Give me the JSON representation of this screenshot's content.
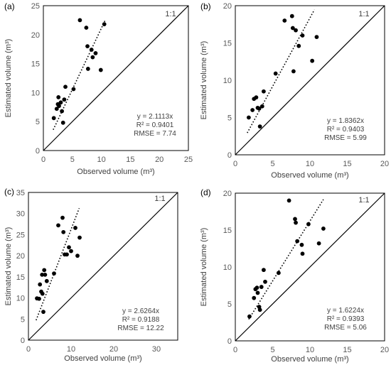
{
  "chart_data": [
    {
      "type": "scatter",
      "panel_label": "(a)",
      "xlabel": "Observed volume (m³)",
      "ylabel": "Estimated volume (m³)",
      "xlim": [
        0,
        25
      ],
      "ylim": [
        0,
        25
      ],
      "xticks": [
        "0",
        "5",
        "10",
        "15",
        "20",
        "25"
      ],
      "yticks": [
        "0",
        "5",
        "10",
        "15",
        "20",
        "25"
      ],
      "x": [
        1.8,
        2.3,
        2.5,
        2.6,
        2.7,
        3.0,
        3.2,
        3.4,
        3.6,
        3.8,
        5.2,
        6.3,
        7.4,
        7.6,
        7.7,
        8.3,
        8.5,
        9.0,
        9.9,
        10.5
      ],
      "y": [
        5.6,
        7.2,
        8.0,
        9.2,
        7.7,
        8.3,
        6.8,
        4.8,
        8.8,
        11.0,
        10.6,
        22.5,
        21.2,
        18.0,
        14.1,
        17.4,
        16.1,
        16.8,
        13.9,
        21.8
      ],
      "fit_slope": 2.1113,
      "fit_x_range": [
        1.7,
        10.7
      ],
      "annotation": [
        "y = 2.1113x",
        "R² = 0.9401",
        "RMSE = 7.74"
      ],
      "one_to_one_label": "1:1",
      "point_color": "#000000"
    },
    {
      "type": "scatter",
      "panel_label": "(b)",
      "xlabel": "Observed volume (m³)",
      "ylabel": "Estimated volume (m³)",
      "xlim": [
        0,
        20
      ],
      "ylim": [
        0,
        20
      ],
      "xticks": [
        "0",
        "5",
        "10",
        "15",
        "20"
      ],
      "yticks": [
        "0",
        "5",
        "10",
        "15",
        "20"
      ],
      "x": [
        1.8,
        2.3,
        2.5,
        2.8,
        3.0,
        3.2,
        3.3,
        3.6,
        3.8,
        5.4,
        6.6,
        7.6,
        7.7,
        7.8,
        8.1,
        8.5,
        9.0,
        10.3,
        10.9
      ],
      "y": [
        5.0,
        6.0,
        7.5,
        7.7,
        6.3,
        6.2,
        3.8,
        6.5,
        8.5,
        10.9,
        18.0,
        18.6,
        17.0,
        11.2,
        16.7,
        14.6,
        16.0,
        12.6,
        15.8
      ],
      "fit_slope": 1.8362,
      "fit_x_range": [
        1.6,
        10.6
      ],
      "annotation": [
        "y = 1.8362x",
        "R² = 0.9403",
        "RMSE = 5.99"
      ],
      "one_to_one_label": "1:1",
      "point_color": "#000000"
    },
    {
      "type": "scatter",
      "panel_label": "(c)",
      "xlabel": "Observed volume (m³)",
      "ylabel": "Estimated volume (m³)",
      "xlim": [
        0,
        35
      ],
      "ylim": [
        0,
        35
      ],
      "xticks": [
        "0",
        "10",
        "20",
        "30"
      ],
      "yticks": [
        "0",
        "5",
        "10",
        "15",
        "20",
        "25",
        "30",
        "35"
      ],
      "x": [
        2.0,
        2.5,
        2.7,
        3.0,
        3.2,
        3.3,
        3.5,
        3.7,
        3.9,
        4.3,
        6.0,
        7.0,
        8.0,
        8.2,
        8.5,
        9.0,
        9.5,
        10.0,
        11.0,
        11.5,
        12.0
      ],
      "y": [
        9.9,
        9.8,
        13.2,
        11.5,
        15.5,
        11.0,
        6.7,
        16.6,
        15.5,
        14.0,
        15.8,
        27.2,
        29.0,
        25.6,
        20.3,
        20.3,
        22.0,
        21.1,
        26.6,
        20.0,
        24.3
      ],
      "fit_slope": 2.6264,
      "fit_x_range": [
        1.8,
        11.9
      ],
      "annotation": [
        "y = 2.6264x",
        "R² = 0.9188",
        "RMSE = 12.22"
      ],
      "one_to_one_label": "1:1",
      "point_color": "#000000"
    },
    {
      "type": "scatter",
      "panel_label": "(d)",
      "xlabel": "Observed volume (m³)",
      "ylabel": "Estimated volume (m³)",
      "xlim": [
        0,
        20
      ],
      "ylim": [
        0,
        20
      ],
      "xticks": [
        "0",
        "5",
        "10",
        "15",
        "20"
      ],
      "yticks": [
        "0",
        "5",
        "10",
        "15",
        "20"
      ],
      "x": [
        1.9,
        2.5,
        2.7,
        2.9,
        3.0,
        3.2,
        3.3,
        3.5,
        3.8,
        4.0,
        5.8,
        7.2,
        8.0,
        8.1,
        8.3,
        8.9,
        9.0,
        9.8,
        11.2,
        11.8
      ],
      "y": [
        3.3,
        5.8,
        7.0,
        7.2,
        6.5,
        4.6,
        4.2,
        7.3,
        9.6,
        8.0,
        9.2,
        19.0,
        16.5,
        16.0,
        13.5,
        13.0,
        11.8,
        15.8,
        13.2,
        15.2
      ],
      "fit_slope": 1.6224,
      "fit_x_range": [
        1.8,
        11.8
      ],
      "annotation": [
        "y = 1.6224x",
        "R² = 0.9393",
        "RMSE = 5.06"
      ],
      "one_to_one_label": "1:1",
      "point_color": "#000000"
    }
  ]
}
